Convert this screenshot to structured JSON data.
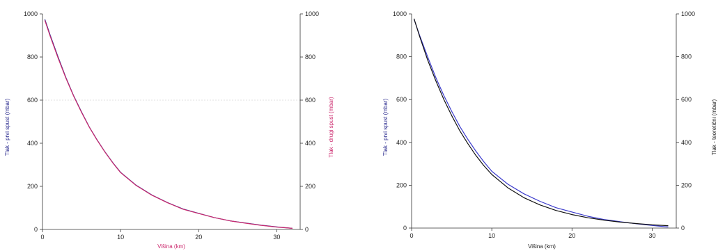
{
  "chart_data": [
    {
      "type": "line",
      "xlabel": "Višina (km)",
      "ylabel_left": "Tlak - prvi spust (mbar)",
      "ylabel_right": "Tlak - drugi spust (mbar)",
      "xlim": [
        0,
        33
      ],
      "ylim_left": [
        0,
        1000
      ],
      "ylim_right": [
        0,
        1000
      ],
      "x_ticks": [
        0,
        10,
        20,
        30
      ],
      "y_ticks_left": [
        0,
        200,
        400,
        600,
        800,
        1000
      ],
      "y_ticks_right": [
        0,
        200,
        400,
        600,
        800,
        1000
      ],
      "grid": false,
      "reference_line_y": 600,
      "colors": {
        "xlabel": "#cc2a6e",
        "ylabel_left": "#2b2b8f",
        "ylabel_right": "#cc2a6e"
      },
      "series": [
        {
          "color": "#2b2b8f",
          "axis": "left",
          "x": [
            0.3,
            1,
            2,
            3,
            4,
            5,
            6,
            7,
            8,
            9,
            10,
            12,
            14,
            16,
            18,
            20,
            22,
            24,
            26,
            28,
            30,
            32
          ],
          "y": [
            975,
            900,
            800,
            705,
            620,
            545,
            475,
            415,
            360,
            310,
            265,
            205,
            160,
            125,
            95,
            75,
            55,
            40,
            30,
            20,
            12,
            5
          ]
        },
        {
          "color": "#cc2a6e",
          "axis": "right",
          "x": [
            0.3,
            1,
            2,
            3,
            4,
            5,
            6,
            7,
            8,
            9,
            10,
            12,
            14,
            16,
            18,
            20,
            22,
            24,
            26,
            28,
            30,
            32
          ],
          "y": [
            970,
            895,
            795,
            702,
            618,
            543,
            474,
            414,
            359,
            309,
            264,
            204,
            159,
            124,
            94,
            74,
            55,
            40,
            29,
            19,
            11,
            5
          ]
        }
      ]
    },
    {
      "type": "line",
      "xlabel": "Višina (km)",
      "ylabel_left": "Tlak - prvi spust (mbar)",
      "ylabel_right": "Tlak - teoretični (mbar)",
      "xlim": [
        0,
        33
      ],
      "ylim_left": [
        0,
        1000
      ],
      "ylim_right": [
        0,
        1000
      ],
      "x_ticks": [
        0,
        10,
        20,
        30
      ],
      "y_ticks_left": [
        0,
        200,
        400,
        600,
        800,
        1000
      ],
      "y_ticks_right": [
        0,
        200,
        400,
        600,
        800,
        1000
      ],
      "grid": false,
      "colors": {
        "xlabel": "#222222",
        "ylabel_left": "#2b2b8f",
        "ylabel_right": "#222222"
      },
      "series": [
        {
          "color": "#3a3acc",
          "axis": "left",
          "x": [
            0.3,
            1,
            2,
            3,
            4,
            5,
            6,
            7,
            8,
            9,
            10,
            12,
            14,
            16,
            18,
            20,
            22,
            24,
            26,
            28,
            30,
            32
          ],
          "y": [
            975,
            900,
            800,
            705,
            620,
            545,
            475,
            415,
            360,
            310,
            265,
            205,
            160,
            125,
            95,
            75,
            55,
            40,
            30,
            20,
            12,
            5
          ]
        },
        {
          "color": "#111111",
          "axis": "right",
          "x": [
            0.3,
            1,
            2,
            3,
            4,
            5,
            6,
            7,
            8,
            9,
            10,
            12,
            14,
            16,
            18,
            20,
            22,
            24,
            26,
            28,
            30,
            32
          ],
          "y": [
            978,
            895,
            785,
            690,
            602,
            525,
            455,
            395,
            340,
            292,
            250,
            188,
            142,
            108,
            82,
            63,
            48,
            37,
            28,
            21,
            15,
            11
          ]
        }
      ]
    }
  ]
}
